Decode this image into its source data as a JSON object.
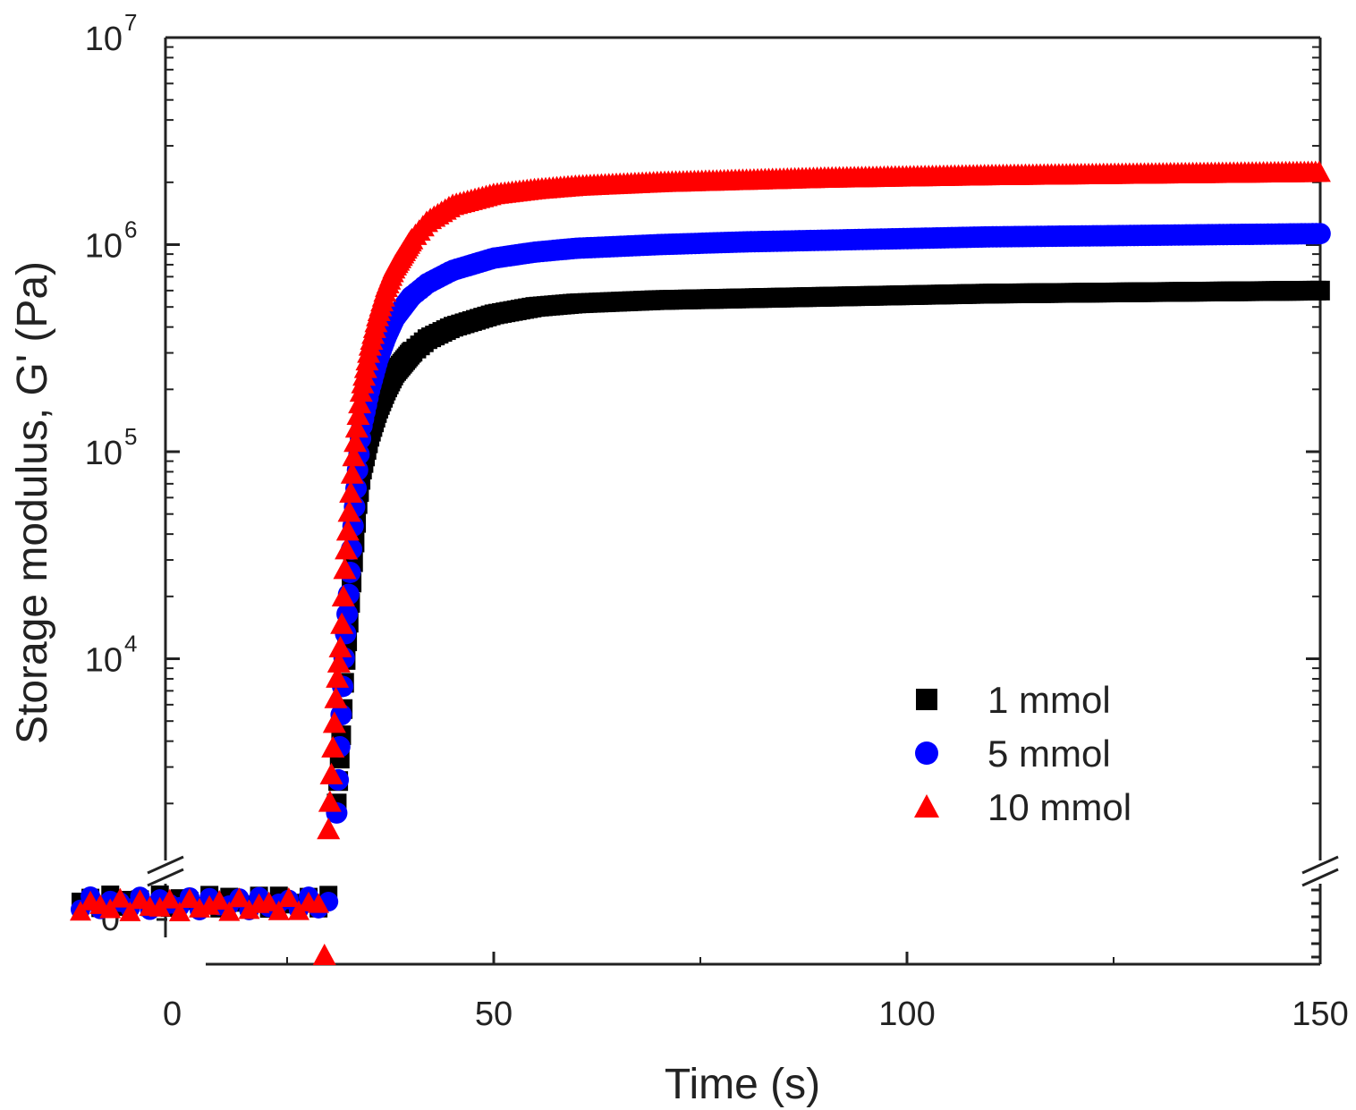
{
  "chart_data": {
    "type": "scatter",
    "xlabel": "Time (s)",
    "ylabel": "Storage modulus, G' (Pa)",
    "x_range": [
      0,
      150
    ],
    "x_ticks": [
      0,
      50,
      100,
      150
    ],
    "x_tick_labels": [
      "0",
      "50",
      "100",
      "150"
    ],
    "y_scale": "log",
    "y_range": [
      1000,
      10000000
    ],
    "y_ticks": [
      10000,
      100000,
      1000000,
      10000000
    ],
    "y_tick_labels": [
      {
        "base": "10",
        "exp": "4"
      },
      {
        "base": "10",
        "exp": "5"
      },
      {
        "base": "10",
        "exp": "6"
      },
      {
        "base": "10",
        "exp": "7"
      }
    ],
    "y_break": true,
    "y_lower_segment_tick_label": "0",
    "legend_position": "bottom-right",
    "grid": false,
    "series": [
      {
        "name": "1 mmol",
        "marker": "square",
        "color": "#000000",
        "x": [
          31,
          31.5,
          32,
          32.5,
          33,
          33.5,
          34,
          35,
          36,
          37,
          38,
          40,
          42,
          45,
          50,
          55,
          60,
          70,
          80,
          90,
          100,
          110,
          120,
          130,
          140,
          150
        ],
        "y": [
          2000,
          4000,
          9000,
          16000,
          30000,
          55000,
          80000,
          120000,
          160000,
          200000,
          240000,
          300000,
          350000,
          400000,
          460000,
          500000,
          520000,
          540000,
          550000,
          560000,
          570000,
          580000,
          585000,
          590000,
          595000,
          600000
        ]
      },
      {
        "name": "5 mmol",
        "marker": "circle",
        "color": "#0000ff",
        "x": [
          31,
          31.5,
          32,
          32.5,
          33,
          33.5,
          34,
          35,
          36,
          37,
          38,
          40,
          42,
          45,
          50,
          55,
          60,
          70,
          80,
          90,
          100,
          110,
          120,
          130,
          140,
          150
        ],
        "y": [
          1800,
          5000,
          12000,
          22000,
          45000,
          80000,
          130000,
          200000,
          280000,
          360000,
          440000,
          560000,
          650000,
          750000,
          860000,
          920000,
          960000,
          1000000,
          1030000,
          1050000,
          1070000,
          1090000,
          1100000,
          1110000,
          1120000,
          1130000
        ]
      },
      {
        "name": "10 mmol",
        "marker": "triangle",
        "color": "#ff0000",
        "x": [
          30,
          30.5,
          31,
          31.5,
          32,
          32.5,
          33,
          33.5,
          34,
          35,
          36,
          37,
          38,
          40,
          42,
          45,
          50,
          55,
          60,
          70,
          80,
          90,
          100,
          110,
          120,
          130,
          140,
          150
        ],
        "y": [
          1500,
          3500,
          7500,
          12000,
          28000,
          50000,
          90000,
          140000,
          200000,
          320000,
          460000,
          620000,
          780000,
          1050000,
          1300000,
          1550000,
          1750000,
          1850000,
          1920000,
          2000000,
          2050000,
          2100000,
          2130000,
          2160000,
          2180000,
          2200000,
          2220000,
          2240000
        ]
      }
    ]
  }
}
